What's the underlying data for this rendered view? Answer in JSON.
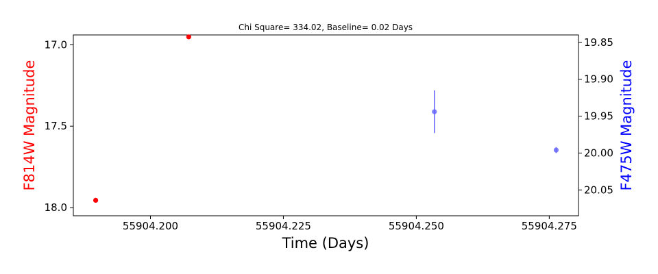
{
  "chart_data": {
    "type": "scatter",
    "title": "Chi Square= 334.02, Baseline= 0.02 Days",
    "xlabel": "Time (Days)",
    "ylabel_left": "F814W Magnitude",
    "ylabel_right": "F475W Magnitude",
    "xlim": [
      55904.1855,
      55904.2805
    ],
    "ylim_left": [
      18.05,
      16.94
    ],
    "ylim_right": [
      20.085,
      19.84
    ],
    "left_axis_inverted": true,
    "right_axis_inverted": true,
    "grid": false,
    "xticks": [
      55904.2,
      55904.225,
      55904.25,
      55904.275
    ],
    "xtick_labels": [
      "55904.200",
      "55904.225",
      "55904.250",
      "55904.275"
    ],
    "yticks_left": [
      17.0,
      17.5,
      18.0
    ],
    "ytick_labels_left": [
      "17.0",
      "17.5",
      "18.0"
    ],
    "yticks_right": [
      19.85,
      19.9,
      19.95,
      20.0,
      20.05
    ],
    "ytick_labels_right": [
      "19.85",
      "19.90",
      "19.95",
      "20.00",
      "20.05"
    ],
    "series": [
      {
        "axis": "left",
        "color": "#ff0000",
        "points": [
          {
            "x": 55904.1897,
            "y": 17.955,
            "yerr": 0.0
          },
          {
            "x": 55904.2072,
            "y": 16.952,
            "yerr": 0.0
          }
        ]
      },
      {
        "axis": "right",
        "color": "#6666ff",
        "points": [
          {
            "x": 55904.2534,
            "y": 19.944,
            "yerr": 0.029
          },
          {
            "x": 55904.2763,
            "y": 19.996,
            "yerr": 0.004
          }
        ]
      }
    ],
    "colors": {
      "left_label": "#ff0000",
      "right_label": "#0000ff",
      "axis": "#000000"
    }
  }
}
